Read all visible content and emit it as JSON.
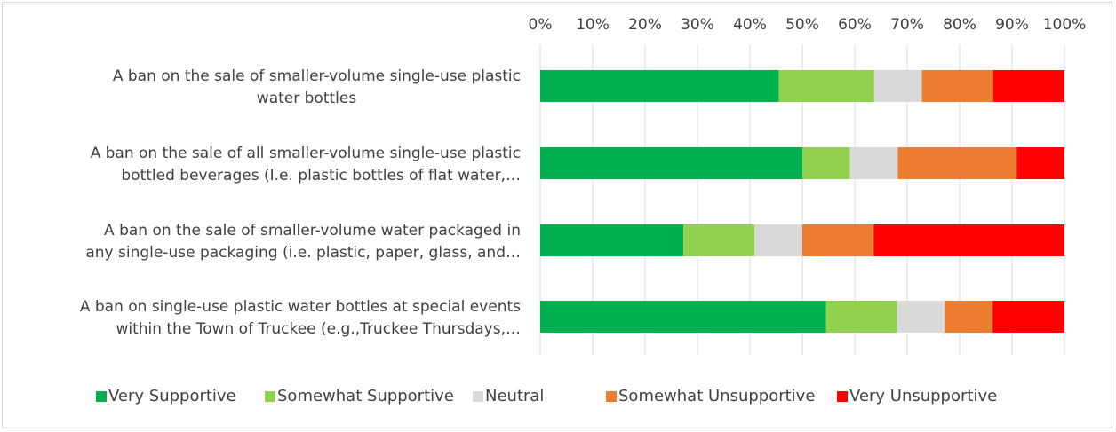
{
  "chart_data": {
    "type": "bar",
    "orientation": "horizontal",
    "stacked": "percent",
    "title": "",
    "xlabel": "",
    "ylabel": "",
    "xlim": [
      0,
      100
    ],
    "x_ticks": [
      "0%",
      "10%",
      "20%",
      "30%",
      "40%",
      "50%",
      "60%",
      "70%",
      "80%",
      "90%",
      "100%"
    ],
    "x_axis_position": "top",
    "grid": true,
    "legend_position": "bottom",
    "categories": [
      [
        "A ban on the sale of smaller-volume single-use plastic",
        "water bottles"
      ],
      [
        "A ban on the sale of all smaller-volume single-use plastic",
        "bottled beverages (I.e. plastic bottles of flat water,…"
      ],
      [
        "A ban on the sale of smaller-volume water packaged in",
        "any single-use packaging (i.e. plastic, paper, glass, and…"
      ],
      [
        "A ban on single-use plastic water bottles at special events",
        "within the Town of Truckee (e.g.,Truckee Thursdays,…"
      ]
    ],
    "series": [
      {
        "name": "Very Supportive",
        "color": "#00b050",
        "values": [
          45.5,
          50.0,
          27.3,
          54.5
        ]
      },
      {
        "name": "Somewhat Supportive",
        "color": "#92d050",
        "values": [
          18.2,
          9.1,
          13.6,
          13.6
        ]
      },
      {
        "name": "Neutral",
        "color": "#d9d9d9",
        "values": [
          9.1,
          9.1,
          9.1,
          9.1
        ]
      },
      {
        "name": "Somewhat Unsupportive",
        "color": "#ed7d31",
        "values": [
          13.6,
          22.7,
          13.6,
          9.1
        ]
      },
      {
        "name": "Very Unsupportive",
        "color": "#ff0000",
        "values": [
          13.6,
          9.1,
          36.4,
          13.7
        ]
      }
    ]
  }
}
